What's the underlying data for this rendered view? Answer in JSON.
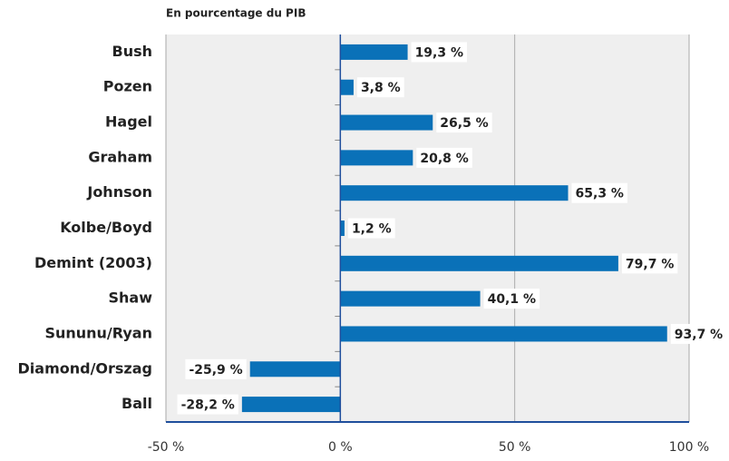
{
  "chart_data": {
    "type": "bar",
    "orientation": "horizontal",
    "subtitle": "En pourcentage du PIB",
    "categories": [
      "Bush",
      "Pozen",
      "Hagel",
      "Graham",
      "Johnson",
      "Kolbe/Boyd",
      "Demint (2003)",
      "Shaw",
      "Sununu/Ryan",
      "Diamond/Orszag",
      "Ball"
    ],
    "values": [
      19.3,
      3.8,
      26.5,
      20.8,
      65.3,
      1.2,
      79.7,
      40.1,
      93.7,
      -25.9,
      -28.2
    ],
    "value_labels": [
      "19,3 %",
      "3,8 %",
      "26,5 %",
      "20,8 %",
      "65,3 %",
      "1,2 %",
      "79,7 %",
      "40,1 %",
      "93,7 %",
      "-25,9 %",
      "-28,2 %"
    ],
    "color": "#0a71b8",
    "xlim": [
      -50,
      100
    ],
    "xticks": [
      {
        "value": -50,
        "label": "-50 %"
      },
      {
        "value": 0,
        "label": "0 %"
      },
      {
        "value": 50,
        "label": "50 %"
      },
      {
        "value": 100,
        "label": "100 %"
      }
    ],
    "grid": true
  }
}
